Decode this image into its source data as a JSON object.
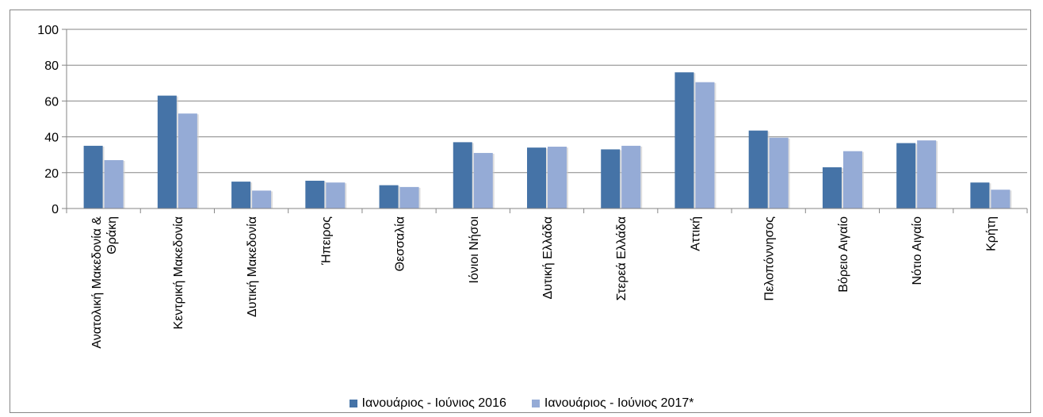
{
  "chart_data": {
    "type": "bar",
    "title": "",
    "xlabel": "",
    "ylabel": "",
    "ylim": [
      0,
      100
    ],
    "yticks": [
      0,
      20,
      40,
      60,
      80,
      100
    ],
    "grid": true,
    "legend_position": "bottom",
    "categories": [
      [
        "Ανατολική Μακεδονία &",
        "Θράκη"
      ],
      [
        "Κεντρική Μακεδονία"
      ],
      [
        "Δυτική Μακεδονία"
      ],
      [
        "Ήπειρος"
      ],
      [
        "Θεσσαλία"
      ],
      [
        "Ιόνιοι Νήσοι"
      ],
      [
        "Δυτική Ελλάδα"
      ],
      [
        "Στερεά Ελλάδα"
      ],
      [
        "Αττική"
      ],
      [
        "Πελοπόννησος"
      ],
      [
        "Βόρειο Αιγαίο"
      ],
      [
        "Νότιο Αιγαίο"
      ],
      [
        "Κρήτη"
      ]
    ],
    "series": [
      {
        "name": "Ιανουάριος - Ιούνιος 2016",
        "color": "#4573a7",
        "values": [
          35,
          63,
          15,
          15.5,
          13,
          37,
          34,
          33,
          76,
          43.5,
          23,
          36.5,
          14.5
        ]
      },
      {
        "name": "Ιανουάριος - Ιούνιος 2017*",
        "color": "#95abd6",
        "values": [
          27,
          53,
          10,
          14.5,
          12,
          31,
          34.5,
          35,
          70.5,
          39.5,
          32,
          38,
          10.5
        ]
      }
    ]
  }
}
